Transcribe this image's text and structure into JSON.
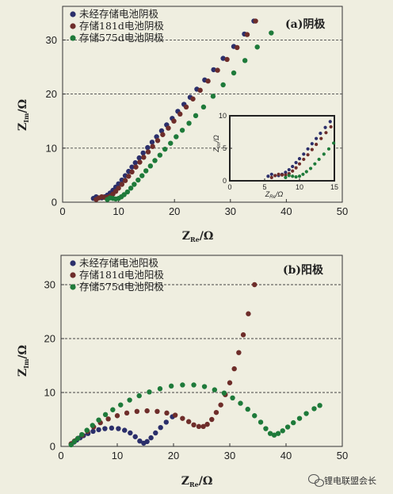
{
  "chart_data": [
    {
      "type": "scatter",
      "panel_label": "(a)阴极",
      "xlabel": "Z_Re/Ω",
      "ylabel": "Z_Im/Ω",
      "xlim": [
        0,
        50
      ],
      "ylim": [
        0,
        35
      ],
      "xticks": [
        0,
        10,
        20,
        30,
        40,
        50
      ],
      "yticks": [
        0,
        10,
        20,
        30
      ],
      "grid": "dashed horizontal at 10, 20, 30",
      "legend_position": "top-left",
      "series": [
        {
          "name": "未经存储电池阴极",
          "color": "#2b2f6b",
          "points": [
            [
              5.5,
              0.7
            ],
            [
              6,
              1.0
            ],
            [
              6.5,
              0.8
            ],
            [
              7,
              0.8
            ],
            [
              7.5,
              1.0
            ],
            [
              8,
              1.3
            ],
            [
              8.5,
              1.7
            ],
            [
              9,
              2.2
            ],
            [
              9.5,
              2.8
            ],
            [
              10,
              3.4
            ],
            [
              10.6,
              4.1
            ],
            [
              11.2,
              4.9
            ],
            [
              11.8,
              5.7
            ],
            [
              12.4,
              6.5
            ],
            [
              13,
              7.3
            ],
            [
              13.7,
              8.2
            ],
            [
              14.4,
              9.1
            ],
            [
              15.2,
              10.1
            ],
            [
              16,
              11.1
            ],
            [
              16.8,
              12.1
            ],
            [
              17.7,
              13.2
            ],
            [
              18.6,
              14.3
            ],
            [
              19.6,
              15.5
            ],
            [
              20.6,
              16.8
            ],
            [
              21.7,
              18.1
            ],
            [
              22.8,
              19.4
            ],
            [
              24,
              20.9
            ],
            [
              25.4,
              22.6
            ],
            [
              27,
              24.5
            ],
            [
              28.7,
              26.6
            ],
            [
              30.6,
              28.8
            ],
            [
              32.5,
              31.1
            ],
            [
              34.2,
              33.5
            ]
          ]
        },
        {
          "name": "存储181d电池阴极",
          "color": "#6e2d2a",
          "points": [
            [
              6,
              0.5
            ],
            [
              6.5,
              0.8
            ],
            [
              7,
              1.0
            ],
            [
              7.5,
              0.9
            ],
            [
              8,
              0.9
            ],
            [
              8.5,
              1.1
            ],
            [
              9,
              1.5
            ],
            [
              9.5,
              2.0
            ],
            [
              10,
              2.6
            ],
            [
              10.6,
              3.3
            ],
            [
              11.2,
              4.0
            ],
            [
              11.8,
              4.8
            ],
            [
              12.4,
              5.6
            ],
            [
              13.1,
              6.5
            ],
            [
              13.8,
              7.4
            ],
            [
              14.5,
              8.3
            ],
            [
              15.3,
              9.3
            ],
            [
              16.1,
              10.3
            ],
            [
              17,
              11.4
            ],
            [
              17.9,
              12.5
            ],
            [
              18.9,
              13.7
            ],
            [
              19.9,
              15.0
            ],
            [
              21,
              16.3
            ],
            [
              22.1,
              17.6
            ],
            [
              23.3,
              19.1
            ],
            [
              24.6,
              20.7
            ],
            [
              26,
              22.4
            ],
            [
              27.7,
              24.4
            ],
            [
              29.4,
              26.4
            ],
            [
              31.2,
              28.6
            ],
            [
              33,
              31.0
            ],
            [
              34.5,
              33.5
            ]
          ]
        },
        {
          "name": "存储575d电池阴极",
          "color": "#1e7a3a",
          "points": [
            [
              8,
              0.5
            ],
            [
              8.5,
              0.8
            ],
            [
              9,
              0.7
            ],
            [
              9.5,
              0.6
            ],
            [
              10,
              0.7
            ],
            [
              10.5,
              1.0
            ],
            [
              11,
              1.4
            ],
            [
              11.6,
              1.9
            ],
            [
              12.2,
              2.6
            ],
            [
              12.8,
              3.3
            ],
            [
              13.5,
              4.1
            ],
            [
              14.2,
              4.9
            ],
            [
              14.9,
              5.8
            ],
            [
              15.7,
              6.7
            ],
            [
              16.5,
              7.7
            ],
            [
              17.4,
              8.7
            ],
            [
              18.3,
              9.8
            ],
            [
              19.3,
              10.9
            ],
            [
              20.3,
              12.1
            ],
            [
              21.4,
              13.3
            ],
            [
              22.6,
              14.6
            ],
            [
              23.8,
              16.0
            ],
            [
              25.2,
              17.6
            ],
            [
              26.9,
              19.6
            ],
            [
              28.7,
              21.7
            ],
            [
              30.6,
              23.9
            ],
            [
              32.6,
              26.2
            ],
            [
              34.8,
              28.7
            ],
            [
              37.3,
              31.3
            ]
          ]
        }
      ]
    },
    {
      "type": "scatter",
      "panel_label": "(b)阳极",
      "xlabel": "Z_Re/Ω",
      "ylabel": "Z_Im/Ω",
      "xlim": [
        0,
        50
      ],
      "ylim": [
        0,
        35
      ],
      "xticks": [
        0,
        10,
        20,
        30,
        40,
        50
      ],
      "yticks": [
        0,
        10,
        20,
        30
      ],
      "grid": "dashed horizontal at 10, 20, 30",
      "legend_position": "top-left",
      "series": [
        {
          "name": "未经存储电池阳极",
          "color": "#2b2f6b",
          "points": [
            [
              1.8,
              0.4
            ],
            [
              2.3,
              0.8
            ],
            [
              2.8,
              1.2
            ],
            [
              3.4,
              1.6
            ],
            [
              4,
              2.0
            ],
            [
              4.8,
              2.4
            ],
            [
              5.7,
              2.8
            ],
            [
              6.7,
              3.1
            ],
            [
              7.8,
              3.3
            ],
            [
              9,
              3.4
            ],
            [
              10.2,
              3.3
            ],
            [
              11.3,
              3.0
            ],
            [
              12.3,
              2.5
            ],
            [
              13.2,
              1.8
            ],
            [
              14,
              1.0
            ],
            [
              14.7,
              0.6
            ],
            [
              15.3,
              0.9
            ],
            [
              16,
              1.6
            ],
            [
              16.8,
              2.5
            ],
            [
              17.7,
              3.5
            ],
            [
              18.7,
              4.5
            ],
            [
              19.8,
              5.5
            ]
          ]
        },
        {
          "name": "存储181d电池阳极",
          "color": "#6e2d2a",
          "points": [
            [
              1.8,
              0.5
            ],
            [
              2.4,
              1.0
            ],
            [
              3,
              1.5
            ],
            [
              3.8,
              2.1
            ],
            [
              4.7,
              2.8
            ],
            [
              5.8,
              3.6
            ],
            [
              7,
              4.4
            ],
            [
              8.4,
              5.1
            ],
            [
              10,
              5.7
            ],
            [
              11.7,
              6.2
            ],
            [
              13.5,
              6.5
            ],
            [
              15.3,
              6.6
            ],
            [
              17.1,
              6.5
            ],
            [
              18.8,
              6.2
            ],
            [
              20.3,
              5.8
            ],
            [
              21.6,
              5.2
            ],
            [
              22.7,
              4.6
            ],
            [
              23.6,
              4.0
            ],
            [
              24.5,
              3.7
            ],
            [
              25.3,
              3.7
            ],
            [
              26,
              4.1
            ],
            [
              26.8,
              5.0
            ],
            [
              27.6,
              6.3
            ],
            [
              28.4,
              7.7
            ],
            [
              29.2,
              9.6
            ],
            [
              30,
              11.8
            ],
            [
              30.8,
              14.4
            ],
            [
              31.6,
              17.4
            ],
            [
              32.4,
              20.7
            ],
            [
              33.3,
              24.6
            ],
            [
              34.4,
              30.0
            ]
          ]
        },
        {
          "name": "存储575d电池阳极",
          "color": "#1e7a3a",
          "points": [
            [
              1.8,
              0.3
            ],
            [
              2.4,
              0.9
            ],
            [
              3,
              1.5
            ],
            [
              3.7,
              2.2
            ],
            [
              4.6,
              3.0
            ],
            [
              5.6,
              3.9
            ],
            [
              6.7,
              4.9
            ],
            [
              7.9,
              5.9
            ],
            [
              9.2,
              6.8
            ],
            [
              10.6,
              7.7
            ],
            [
              12.2,
              8.6
            ],
            [
              13.9,
              9.4
            ],
            [
              15.7,
              10.1
            ],
            [
              17.6,
              10.7
            ],
            [
              19.6,
              11.2
            ],
            [
              21.6,
              11.4
            ],
            [
              23.6,
              11.4
            ],
            [
              25.5,
              11.1
            ],
            [
              27.3,
              10.5
            ],
            [
              29,
              9.9
            ],
            [
              30.5,
              9.0
            ],
            [
              31.9,
              8.0
            ],
            [
              33.2,
              6.9
            ],
            [
              34.4,
              5.7
            ],
            [
              35.5,
              4.5
            ],
            [
              36.4,
              3.3
            ],
            [
              37.2,
              2.4
            ],
            [
              37.9,
              2.1
            ],
            [
              38.6,
              2.4
            ],
            [
              39.4,
              2.9
            ],
            [
              40.3,
              3.6
            ],
            [
              41.3,
              4.4
            ],
            [
              42.4,
              5.2
            ],
            [
              43.6,
              6.1
            ],
            [
              45,
              7.0
            ],
            [
              46,
              7.6
            ]
          ]
        }
      ]
    }
  ],
  "inset": {
    "panel": "(a)",
    "xlabel": "Z_Re/Ω",
    "ylabel": "Z_Im/Ω",
    "xlim": [
      0,
      15
    ],
    "ylim": [
      0,
      10
    ],
    "xticks": [
      0,
      5,
      10,
      15
    ],
    "yticks": [
      0,
      5,
      10
    ],
    "description_points_from_series": true
  },
  "watermark": "锂电联盟会长",
  "watermark_icon": "wechat-icon"
}
